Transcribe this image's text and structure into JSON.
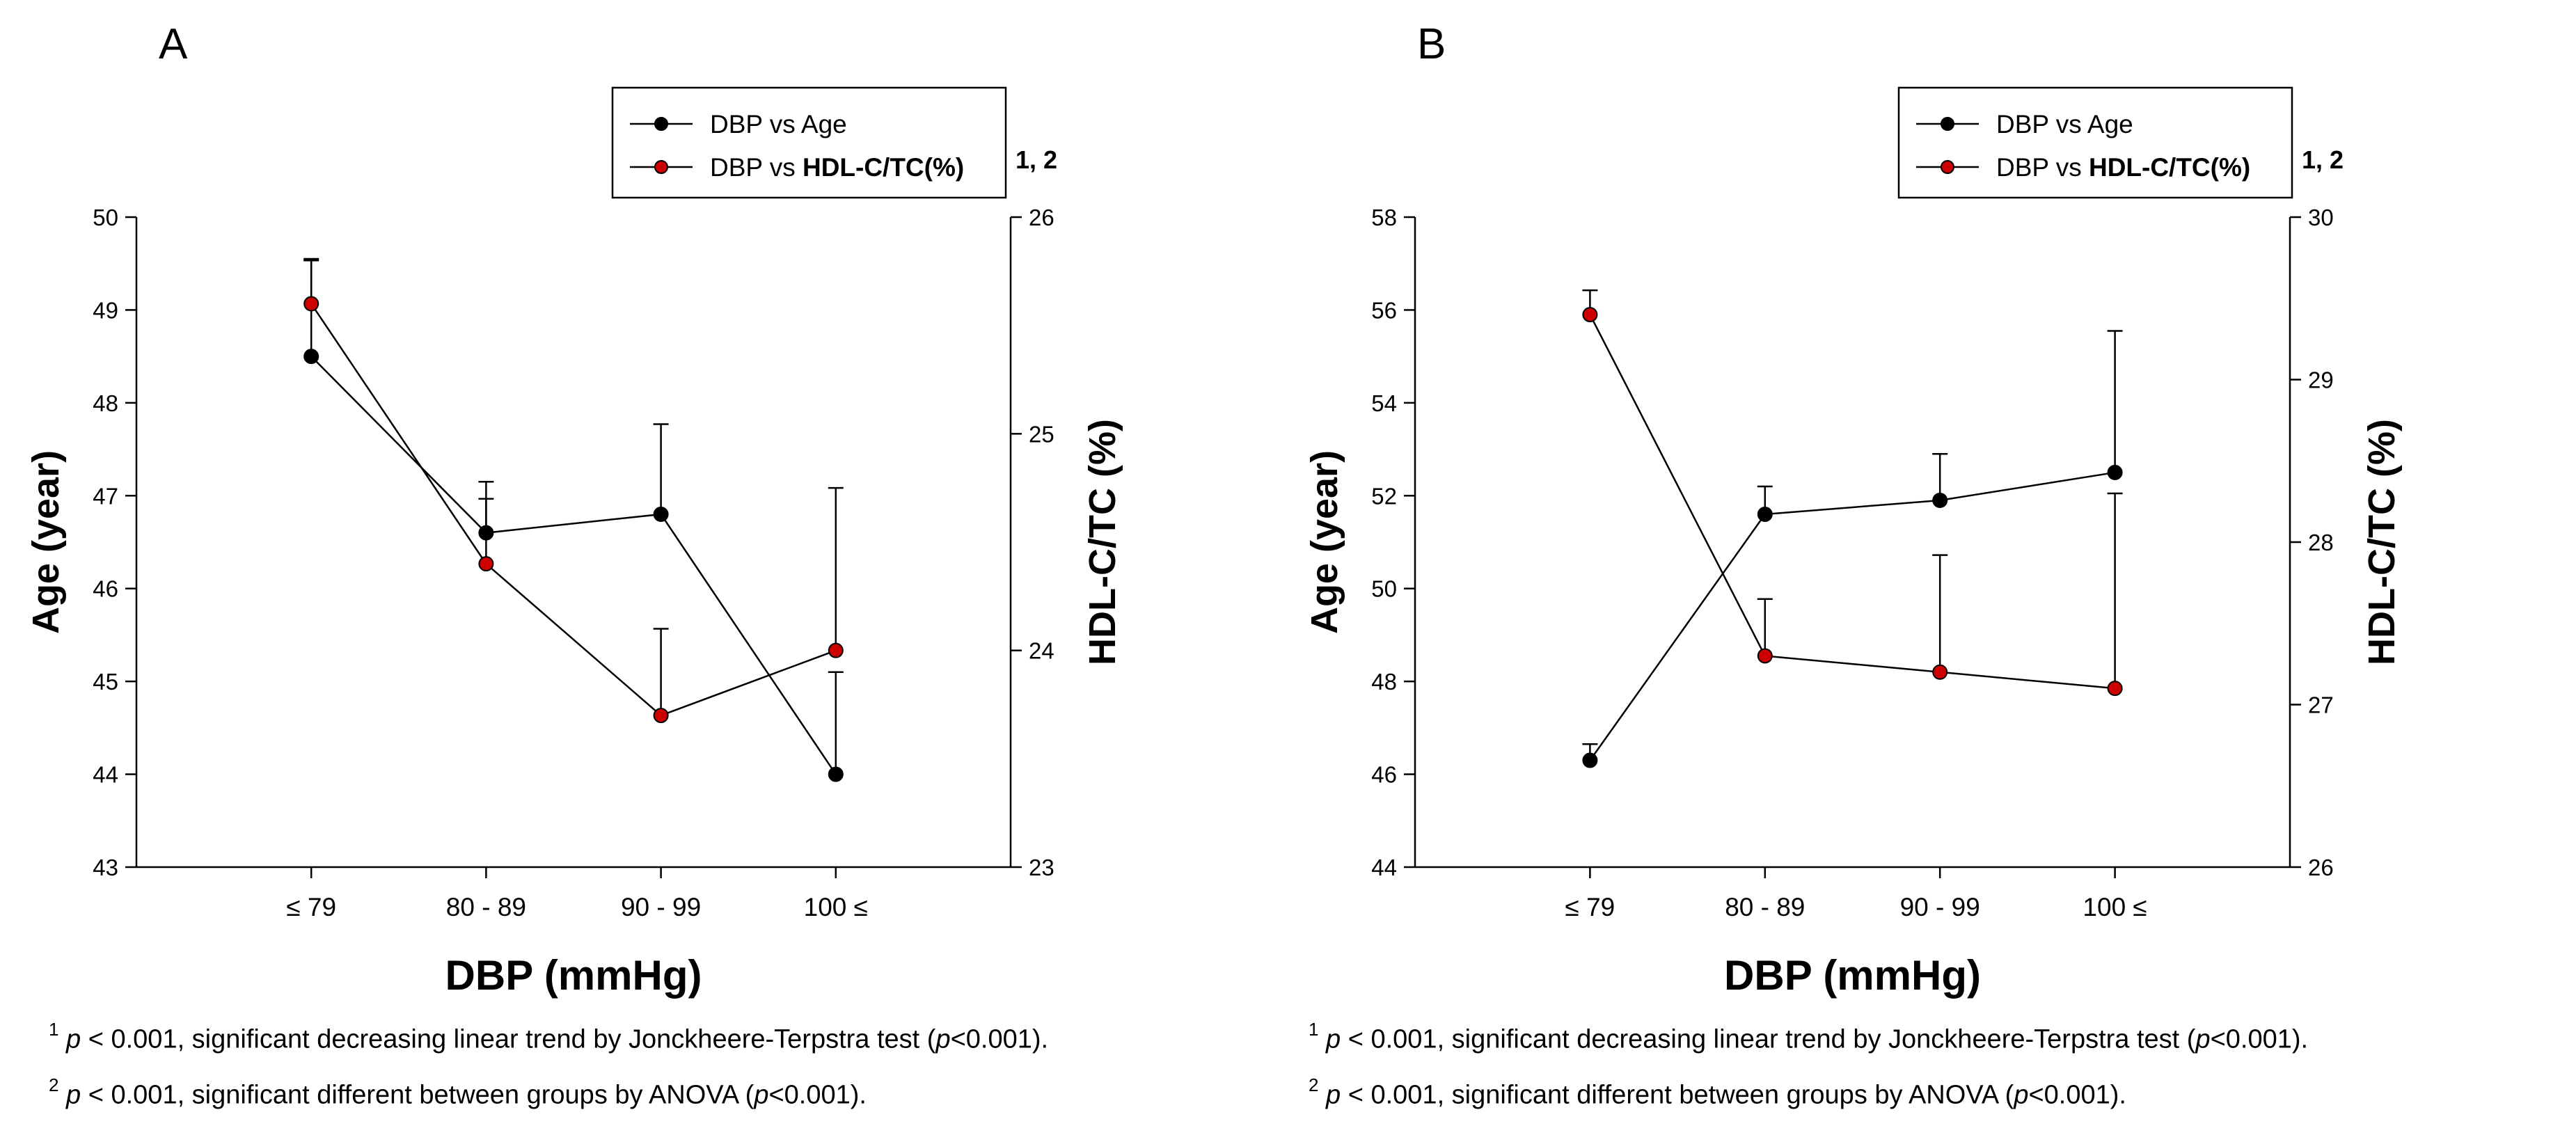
{
  "panels": [
    {
      "label": "A",
      "legend": {
        "series1": "DBP vs Age",
        "series2_prefix": "DBP vs",
        "series2_bold": "HDL-C/TC(%)",
        "superscript": "1, 2"
      },
      "notes": [
        {
          "sup": "1",
          "p": "p",
          "text1": " < 0.001, significant decreasing linear trend by Jonckheere-Terpstra test (",
          "p2": "p",
          "text2": "<0.001)."
        },
        {
          "sup": "2",
          "p": "p",
          "text1": " < 0.001, significant different between groups by ANOVA (",
          "p2": "p",
          "text2": "<0.001)."
        }
      ]
    },
    {
      "label": "B",
      "legend": {
        "series1": "DBP vs Age",
        "series2_prefix": "DBP vs",
        "series2_bold": "HDL-C/TC(%)",
        "superscript": "1, 2"
      },
      "notes": [
        {
          "sup": "1",
          "p": "p",
          "text1": " < 0.001, significant decreasing linear trend by Jonckheere-Terpstra test (",
          "p2": "p",
          "text2": "<0.001)."
        },
        {
          "sup": "2",
          "p": "p",
          "text1": " < 0.001, significant different between groups by ANOVA (",
          "p2": "p",
          "text2": "<0.001)."
        }
      ]
    }
  ],
  "chart_data": [
    {
      "type": "line",
      "panel": "A",
      "categories": [
        "≤ 79",
        "80 - 89",
        "90 - 99",
        "100 ≤"
      ],
      "xlabel": "DBP (mmHg)",
      "ylabel": "Age (year)",
      "y2label": "HDL-C/TC (%)",
      "ylim": [
        43,
        50
      ],
      "y2lim": [
        23,
        26
      ],
      "yticks": [
        43,
        44,
        45,
        46,
        47,
        48,
        49,
        50
      ],
      "y2ticks": [
        23,
        24,
        25,
        26
      ],
      "series": [
        {
          "name": "DBP vs Age",
          "axis": "left",
          "color": "#000000",
          "values": [
            48.5,
            46.6,
            46.8,
            44.0
          ],
          "error": [
            1.05,
            0.55,
            0.97,
            1.1
          ]
        },
        {
          "name": "DBP vs HDL-C/TC(%)",
          "axis": "right",
          "color": "#cc0000",
          "values": [
            25.6,
            24.4,
            23.7,
            24.0
          ],
          "error": [
            0.2,
            0.3,
            0.4,
            0.75
          ]
        }
      ]
    },
    {
      "type": "line",
      "panel": "B",
      "categories": [
        "≤ 79",
        "80 - 89",
        "90 - 99",
        "100 ≤"
      ],
      "xlabel": "DBP (mmHg)",
      "ylabel": "Age (year)",
      "y2label": "HDL-C/TC (%)",
      "ylim": [
        44,
        58
      ],
      "y2lim": [
        26,
        30
      ],
      "yticks": [
        44,
        46,
        48,
        50,
        52,
        54,
        56,
        58
      ],
      "y2ticks": [
        26,
        27,
        28,
        29,
        30
      ],
      "series": [
        {
          "name": "DBP vs Age",
          "axis": "left",
          "color": "#000000",
          "values": [
            46.3,
            51.6,
            51.9,
            52.5
          ],
          "error": [
            0.35,
            0.6,
            1.0,
            3.05
          ]
        },
        {
          "name": "DBP vs HDL-C/TC(%)",
          "axis": "right",
          "color": "#cc0000",
          "values": [
            29.4,
            27.3,
            27.2,
            27.1
          ],
          "error": [
            0.15,
            0.35,
            0.72,
            1.2
          ]
        }
      ]
    }
  ]
}
